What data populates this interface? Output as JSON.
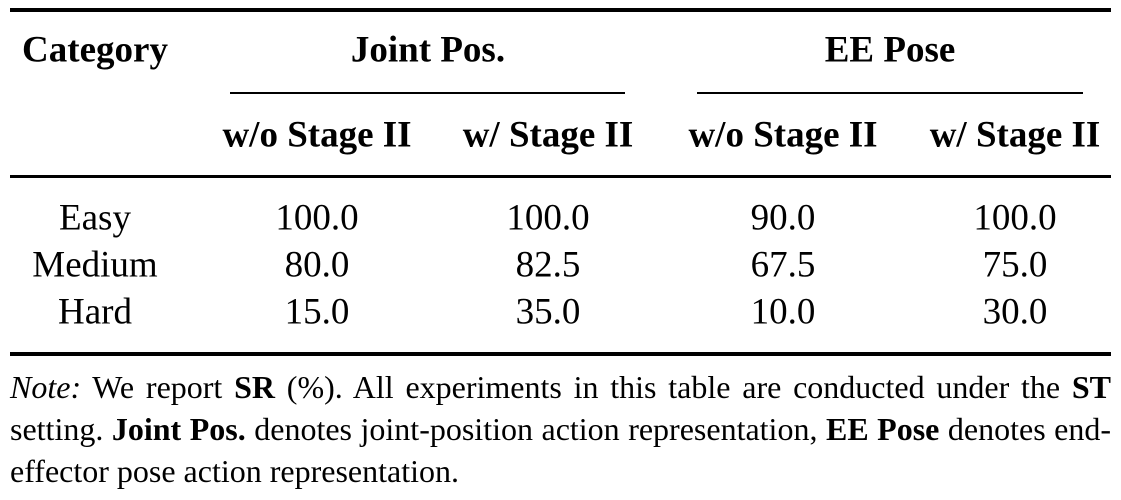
{
  "table": {
    "header": {
      "category": "Category",
      "groups": [
        "Joint Pos.",
        "EE Pose"
      ],
      "subheaders": [
        "w/o Stage II",
        "w/ Stage II",
        "w/o Stage II",
        "w/ Stage II"
      ]
    },
    "rows": [
      [
        "Easy",
        "100.0",
        "100.0",
        "90.0",
        "100.0"
      ],
      [
        "Medium",
        "80.0",
        "82.5",
        "67.5",
        "75.0"
      ],
      [
        "Hard",
        "15.0",
        "35.0",
        "10.0",
        "30.0"
      ]
    ]
  },
  "note": {
    "label": "Note:",
    "parts": [
      " We report ",
      "SR",
      " (%).  All experiments in this table are conducted under the ",
      "ST",
      " setting. ",
      "Joint Pos.",
      " denotes joint-position action representation, ",
      "EE Pose",
      " denotes end-effector pose action representation."
    ]
  }
}
